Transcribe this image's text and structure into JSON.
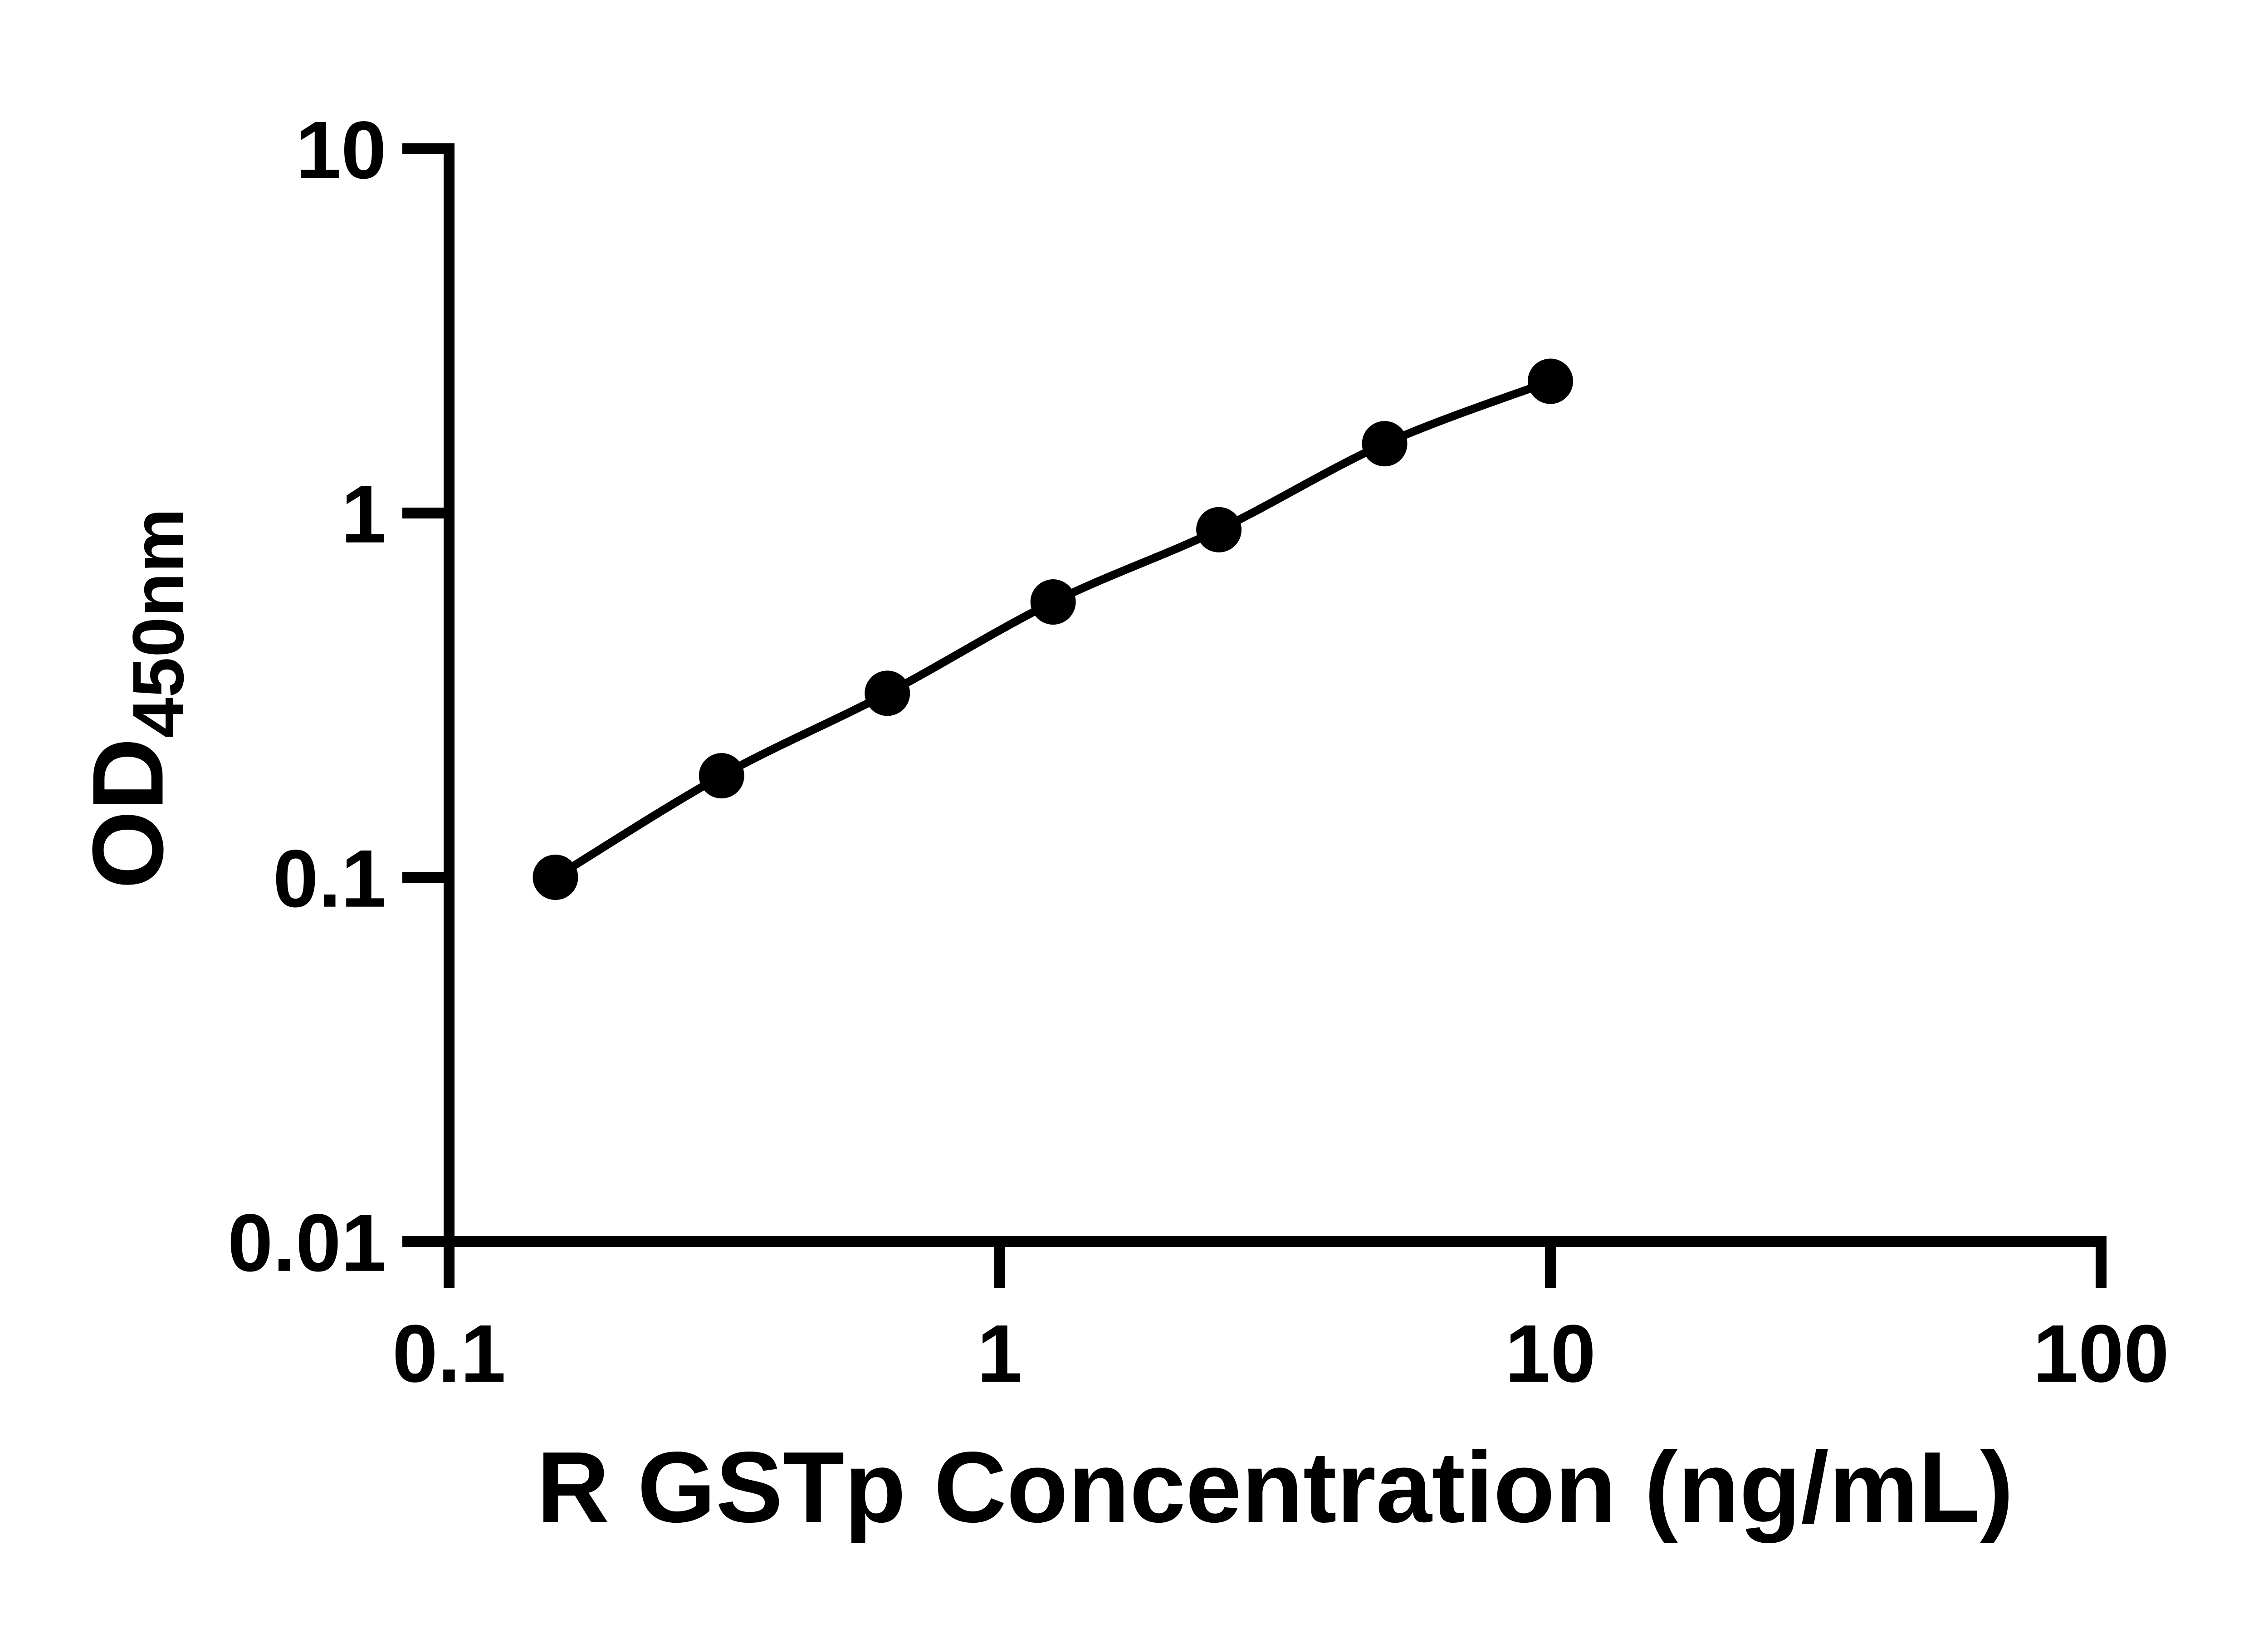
{
  "figure": {
    "background_color": "#ffffff",
    "ink_color": "#000000"
  },
  "chart_data": {
    "type": "line",
    "subtype": "scatter-with-smooth-curve",
    "title": "",
    "xlabel": "R GSTp Concentration (ng/mL)",
    "ylabel_main": "OD",
    "ylabel_sub": "450nm",
    "x_scale": "log10",
    "y_scale": "log10",
    "xlim": [
      0.1,
      100
    ],
    "ylim": [
      0.01,
      10
    ],
    "grid": false,
    "legend": "none",
    "marker": "filled-circle",
    "marker_color": "#000000",
    "line_color": "#000000",
    "x": [
      0.156,
      0.3125,
      0.625,
      1.25,
      2.5,
      5,
      10
    ],
    "y": [
      0.1,
      0.19,
      0.32,
      0.57,
      0.9,
      1.55,
      2.3
    ],
    "x_ticks": [
      {
        "value": 0.1,
        "label": "0.1"
      },
      {
        "value": 1,
        "label": "1"
      },
      {
        "value": 10,
        "label": "10"
      },
      {
        "value": 100,
        "label": "100"
      }
    ],
    "y_ticks": [
      {
        "value": 10,
        "label": "10"
      },
      {
        "value": 1,
        "label": "1"
      },
      {
        "value": 0.1,
        "label": "0.1"
      },
      {
        "value": 0.01,
        "label": "0.01"
      }
    ]
  }
}
